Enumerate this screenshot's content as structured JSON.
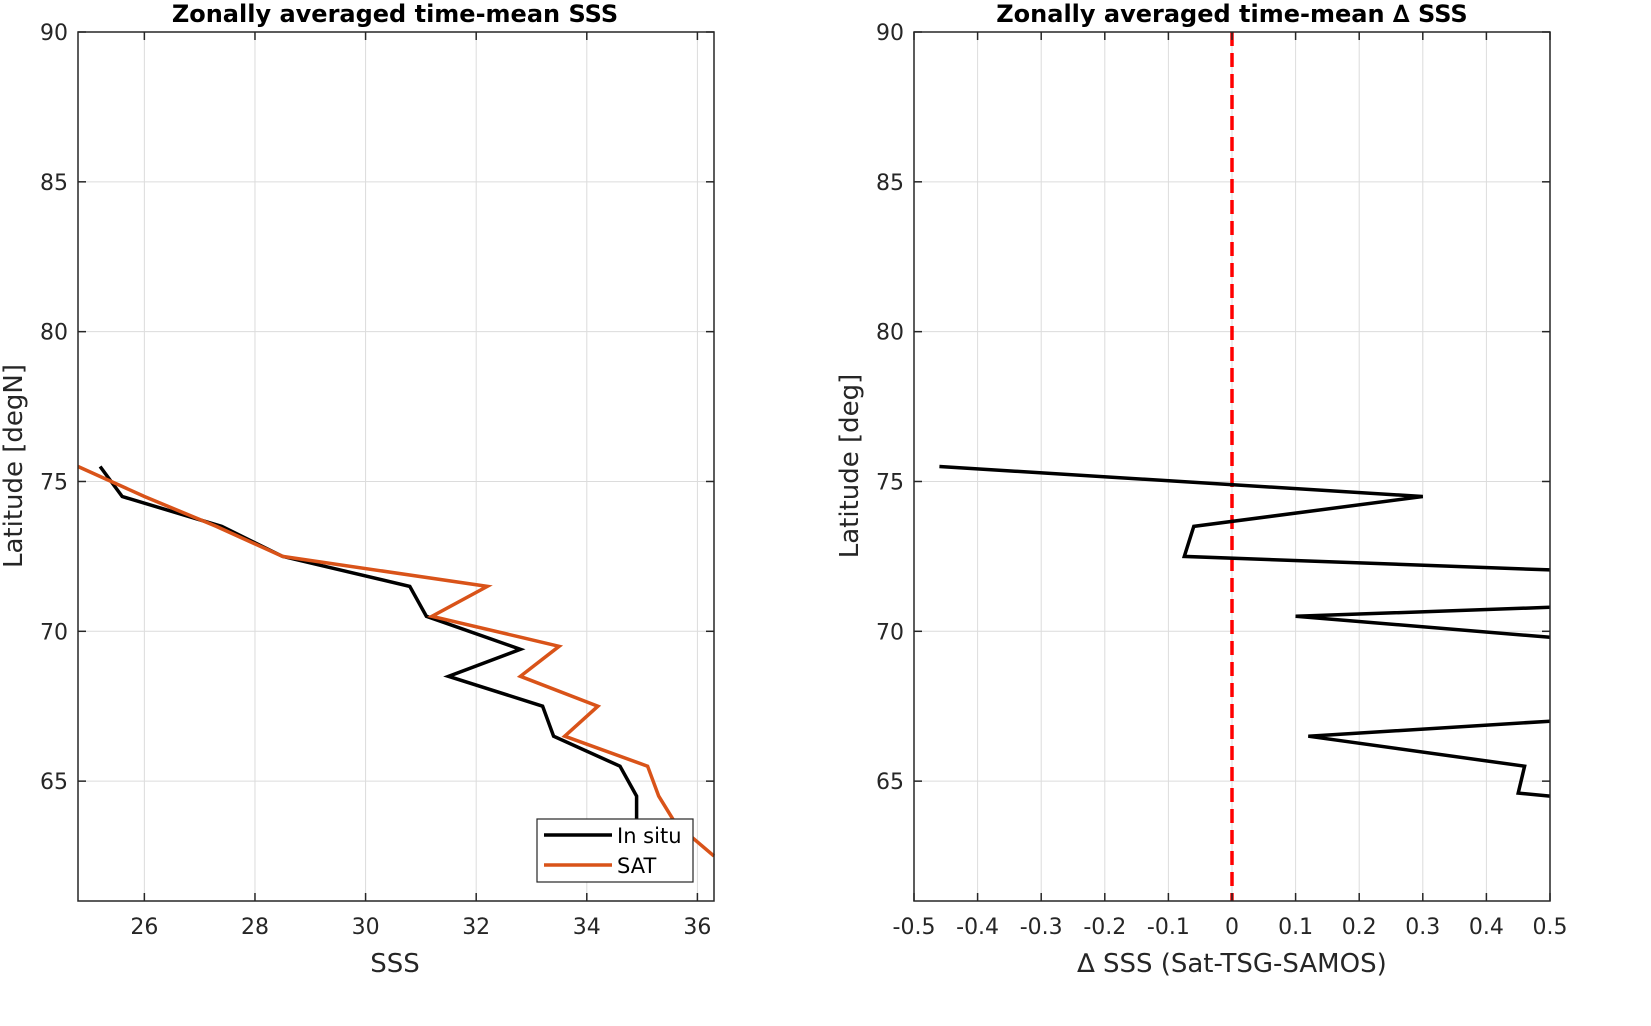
{
  "chart_data": [
    {
      "type": "line",
      "title": "Zonally averaged time-mean SSS",
      "xlabel": "SSS",
      "ylabel": "Latitude [degN]",
      "xlim": [
        24.8,
        36.3
      ],
      "ylim": [
        61,
        90
      ],
      "xticks": [
        26,
        28,
        30,
        32,
        34,
        36
      ],
      "yticks": [
        65,
        70,
        75,
        80,
        85,
        90
      ],
      "grid": true,
      "legend_position": "bottom-right",
      "series": [
        {
          "name": "In situ",
          "color": "#000000",
          "points": [
            [
              25.2,
              75.5
            ],
            [
              25.6,
              74.5
            ],
            [
              27.4,
              73.5
            ],
            [
              28.5,
              72.5
            ],
            [
              30.8,
              71.5
            ],
            [
              31.1,
              70.5
            ],
            [
              32.8,
              69.4
            ],
            [
              31.5,
              68.5
            ],
            [
              33.2,
              67.5
            ],
            [
              33.4,
              66.5
            ],
            [
              34.6,
              65.5
            ],
            [
              34.9,
              64.5
            ],
            [
              34.9,
              63.2
            ]
          ]
        },
        {
          "name": "SAT",
          "color": "#d95319",
          "points": [
            [
              24.8,
              75.5
            ],
            [
              26.0,
              74.5
            ],
            [
              27.3,
              73.5
            ],
            [
              28.5,
              72.5
            ],
            [
              32.2,
              71.5
            ],
            [
              31.2,
              70.5
            ],
            [
              33.5,
              69.5
            ],
            [
              32.8,
              68.5
            ],
            [
              34.2,
              67.5
            ],
            [
              33.6,
              66.5
            ],
            [
              35.1,
              65.5
            ],
            [
              35.3,
              64.5
            ],
            [
              35.6,
              63.6
            ],
            [
              36.3,
              62.5
            ]
          ]
        }
      ]
    },
    {
      "type": "line",
      "title": "Zonally averaged time-mean ∆ SSS",
      "xlabel": "∆ SSS (Sat-TSG-SAMOS)",
      "ylabel": "Latitude [deg]",
      "xlim": [
        -0.5,
        0.5
      ],
      "ylim": [
        61,
        90
      ],
      "xticks": [
        -0.5,
        -0.4,
        -0.3,
        -0.2,
        -0.1,
        0,
        0.1,
        0.2,
        0.3,
        0.4,
        0.5
      ],
      "yticks": [
        65,
        70,
        75,
        80,
        85,
        90
      ],
      "grid": true,
      "reference_line": {
        "x": 0,
        "color": "#ff0000",
        "style": "dashed"
      },
      "series": [
        {
          "color": "#000000",
          "segments": [
            [
              [
                -0.46,
                75.5
              ],
              [
                0.3,
                74.5
              ],
              [
                -0.06,
                73.5
              ],
              [
                -0.075,
                72.5
              ],
              [
                0.5,
                72.05
              ]
            ],
            [
              [
                0.5,
                70.8
              ],
              [
                0.1,
                70.5
              ],
              [
                0.5,
                69.8
              ]
            ],
            [
              [
                0.5,
                67.0
              ],
              [
                0.12,
                66.5
              ],
              [
                0.46,
                65.5
              ],
              [
                0.45,
                64.6
              ],
              [
                0.5,
                64.5
              ]
            ]
          ]
        }
      ]
    }
  ]
}
